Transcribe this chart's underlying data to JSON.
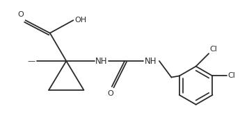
{
  "bg_color": "#ffffff",
  "line_color": "#2a2a2a",
  "line_width": 1.3,
  "figsize": [
    3.45,
    1.76
  ],
  "dpi": 100,
  "xlim": [
    0.0,
    10.2
  ],
  "ylim": [
    0.0,
    5.2
  ]
}
